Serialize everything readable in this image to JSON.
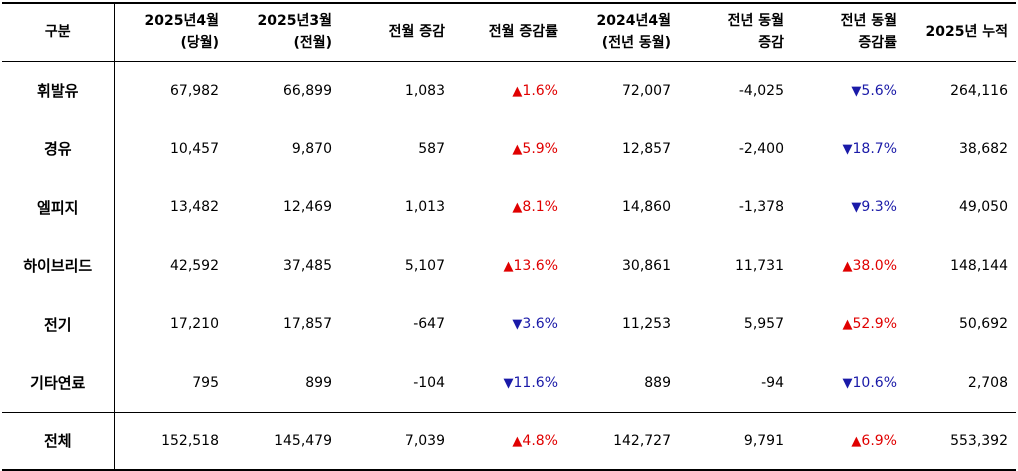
{
  "headers": {
    "category": "구분",
    "cur": "2025년4월\n(당월)",
    "prev": "2025년3월\n(전월)",
    "mom_change": "전월 증감",
    "mom_rate": "전월 증감률",
    "yoy_base": "2024년4월\n(전년 동월)",
    "yoy_change": "전년 동월\n증감",
    "yoy_rate": "전년 동월\n증감률",
    "ytd": "2025년 누적"
  },
  "arrows": {
    "up": "▲",
    "down": "▼"
  },
  "colors": {
    "up": "#e00000",
    "down": "#1a1aa8"
  },
  "rows": [
    {
      "label": "휘발유",
      "cur": "67,982",
      "prev": "66,899",
      "mom_change": "1,083",
      "mom_dir": "up",
      "mom_rate": "1.6%",
      "yoy_base": "72,007",
      "yoy_change": "-4,025",
      "yoy_dir": "down",
      "yoy_rate": "5.6%",
      "ytd": "264,116"
    },
    {
      "label": "경유",
      "cur": "10,457",
      "prev": "9,870",
      "mom_change": "587",
      "mom_dir": "up",
      "mom_rate": "5.9%",
      "yoy_base": "12,857",
      "yoy_change": "-2,400",
      "yoy_dir": "down",
      "yoy_rate": "18.7%",
      "ytd": "38,682"
    },
    {
      "label": "엘피지",
      "cur": "13,482",
      "prev": "12,469",
      "mom_change": "1,013",
      "mom_dir": "up",
      "mom_rate": "8.1%",
      "yoy_base": "14,860",
      "yoy_change": "-1,378",
      "yoy_dir": "down",
      "yoy_rate": "9.3%",
      "ytd": "49,050"
    },
    {
      "label": "하이브리드",
      "cur": "42,592",
      "prev": "37,485",
      "mom_change": "5,107",
      "mom_dir": "up",
      "mom_rate": "13.6%",
      "yoy_base": "30,861",
      "yoy_change": "11,731",
      "yoy_dir": "up",
      "yoy_rate": "38.0%",
      "ytd": "148,144"
    },
    {
      "label": "전기",
      "cur": "17,210",
      "prev": "17,857",
      "mom_change": "-647",
      "mom_dir": "down",
      "mom_rate": "3.6%",
      "yoy_base": "11,253",
      "yoy_change": "5,957",
      "yoy_dir": "up",
      "yoy_rate": "52.9%",
      "ytd": "50,692"
    },
    {
      "label": "기타연료",
      "cur": "795",
      "prev": "899",
      "mom_change": "-104",
      "mom_dir": "down",
      "mom_rate": "11.6%",
      "yoy_base": "889",
      "yoy_change": "-94",
      "yoy_dir": "down",
      "yoy_rate": "10.6%",
      "ytd": "2,708"
    }
  ],
  "total": {
    "label": "전체",
    "cur": "152,518",
    "prev": "145,479",
    "mom_change": "7,039",
    "mom_dir": "up",
    "mom_rate": "4.8%",
    "yoy_base": "142,727",
    "yoy_change": "9,791",
    "yoy_dir": "up",
    "yoy_rate": "6.9%",
    "ytd": "553,392"
  }
}
